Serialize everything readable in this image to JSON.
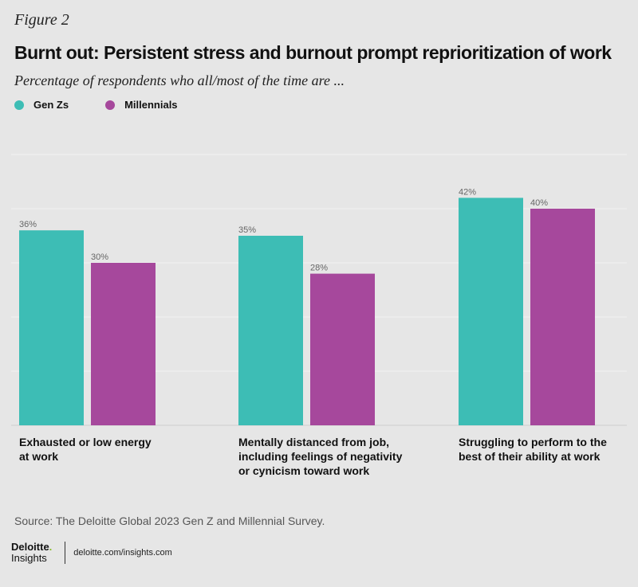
{
  "figure_label": "Figure 2",
  "title": "Burnt out: Persistent stress and burnout prompt reprioritization of work",
  "subtitle": "Percentage of respondents who all/most of the time are ...",
  "source": "Source: The Deloitte Global 2023 Gen Z and Millennial Survey.",
  "brand": {
    "name": "Deloitte",
    "dot": ".",
    "sub": "Insights",
    "url": "deloitte.com/insights.com"
  },
  "colors": {
    "gen_z": "#3dbdb5",
    "millennials": "#a6489c",
    "grid": "#f2f2f2",
    "baseline": "#cfcfcf"
  },
  "chart_data": {
    "type": "bar",
    "categories": [
      [
        "Exhausted or low energy",
        "at work"
      ],
      [
        "Mentally distanced from job,",
        "including feelings of negativity",
        "or cynicism toward work"
      ],
      [
        "Struggling to perform to the",
        "best of their ability at work"
      ]
    ],
    "series": [
      {
        "name": "Gen Zs",
        "values": [
          36,
          35,
          42
        ],
        "labels": [
          "36%",
          "35%",
          "42%"
        ],
        "color": "#3dbdb5"
      },
      {
        "name": "Millennials",
        "values": [
          30,
          28,
          40
        ],
        "labels": [
          "30%",
          "28%",
          "40%"
        ],
        "color": "#a6489c"
      }
    ],
    "ylim": [
      0,
      50
    ],
    "grid": true,
    "legend": "top-left",
    "xlabel": "",
    "ylabel": ""
  }
}
